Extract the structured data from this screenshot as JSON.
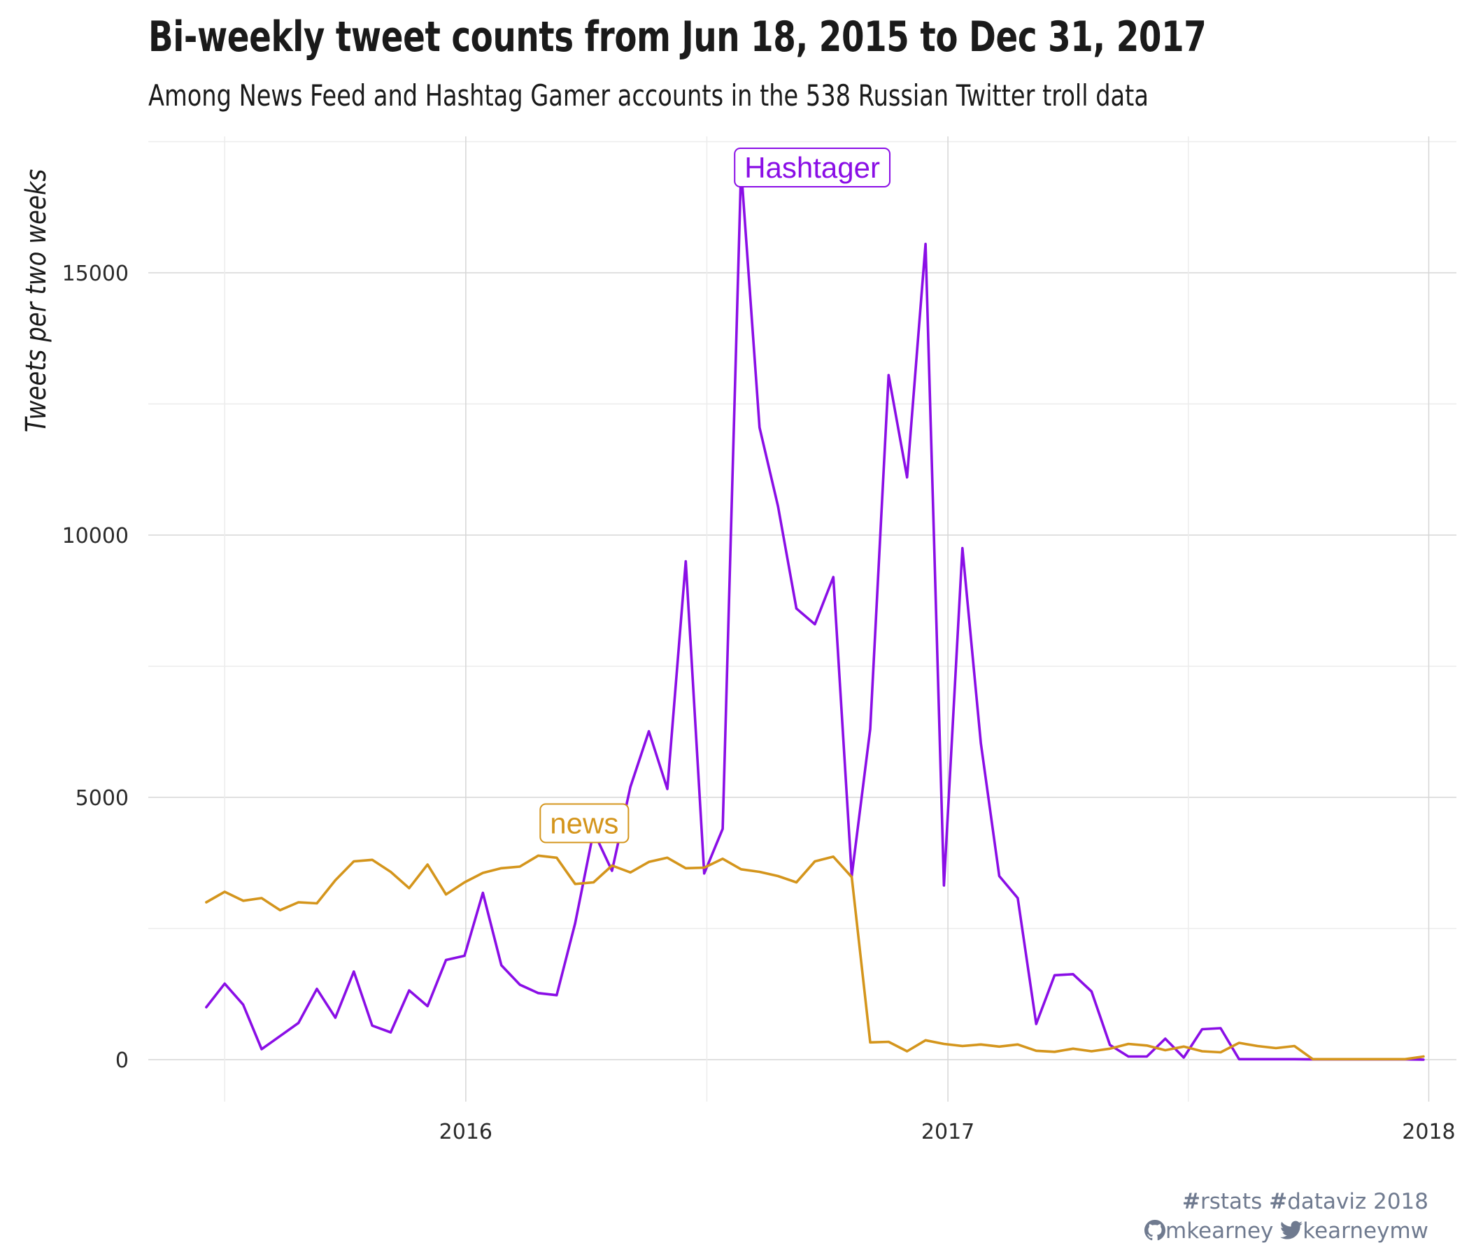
{
  "chart_data": {
    "type": "line",
    "title": "Bi-weekly tweet counts from Jun 18, 2015 to Dec 31, 2017",
    "subtitle": "Among News Feed and Hashtag Gamer accounts in the 538 Russian Twitter troll data",
    "ylabel": "Tweets per two weeks",
    "xlabel": "",
    "x_ticks": [
      "2016",
      "2017",
      "2018"
    ],
    "x_tick_dates": [
      "2016-01-01",
      "2017-01-01",
      "2018-01-01"
    ],
    "y_ticks": [
      0,
      5000,
      10000,
      15000
    ],
    "ylim": [
      -800,
      17600
    ],
    "xlim": [
      "2015-05-05",
      "2018-01-22"
    ],
    "grid": true,
    "legend": "none",
    "series": [
      {
        "name": "Hashtager",
        "color": "#8a0ee6",
        "label_date": "2016-09-20",
        "label_value": 17000,
        "points": [
          [
            "2015-06-18",
            1000
          ],
          [
            "2015-07-02",
            1450
          ],
          [
            "2015-07-16",
            1050
          ],
          [
            "2015-07-30",
            200
          ],
          [
            "2015-08-13",
            450
          ],
          [
            "2015-08-27",
            700
          ],
          [
            "2015-09-10",
            1350
          ],
          [
            "2015-09-24",
            800
          ],
          [
            "2015-10-08",
            1680
          ],
          [
            "2015-10-22",
            650
          ],
          [
            "2015-11-05",
            520
          ],
          [
            "2015-11-19",
            1320
          ],
          [
            "2015-12-03",
            1020
          ],
          [
            "2015-12-17",
            1900
          ],
          [
            "2015-12-31",
            1980
          ],
          [
            "2016-01-14",
            3180
          ],
          [
            "2016-01-28",
            1800
          ],
          [
            "2016-02-11",
            1430
          ],
          [
            "2016-02-25",
            1270
          ],
          [
            "2016-03-10",
            1230
          ],
          [
            "2016-03-24",
            2600
          ],
          [
            "2016-04-07",
            4350
          ],
          [
            "2016-04-21",
            3600
          ],
          [
            "2016-05-05",
            5200
          ],
          [
            "2016-05-19",
            6260
          ],
          [
            "2016-06-02",
            5160
          ],
          [
            "2016-06-16",
            9500
          ],
          [
            "2016-06-30",
            3550
          ],
          [
            "2016-07-14",
            4400
          ],
          [
            "2016-07-28",
            17000
          ],
          [
            "2016-08-11",
            12050
          ],
          [
            "2016-08-25",
            10550
          ],
          [
            "2016-09-08",
            8600
          ],
          [
            "2016-09-22",
            8300
          ],
          [
            "2016-10-06",
            9200
          ],
          [
            "2016-10-20",
            3500
          ],
          [
            "2016-11-03",
            6300
          ],
          [
            "2016-11-17",
            13050
          ],
          [
            "2016-12-01",
            11100
          ],
          [
            "2016-12-15",
            15550
          ],
          [
            "2016-12-29",
            3320
          ],
          [
            "2017-01-12",
            9750
          ],
          [
            "2017-01-26",
            6030
          ],
          [
            "2017-02-09",
            3500
          ],
          [
            "2017-02-23",
            3080
          ],
          [
            "2017-03-09",
            680
          ],
          [
            "2017-03-23",
            1610
          ],
          [
            "2017-04-06",
            1630
          ],
          [
            "2017-04-20",
            1300
          ],
          [
            "2017-05-04",
            280
          ],
          [
            "2017-05-18",
            60
          ],
          [
            "2017-06-01",
            60
          ],
          [
            "2017-06-15",
            400
          ],
          [
            "2017-06-29",
            40
          ],
          [
            "2017-07-13",
            580
          ],
          [
            "2017-07-27",
            600
          ],
          [
            "2017-08-10",
            10
          ],
          [
            "2017-08-24",
            10
          ],
          [
            "2017-09-07",
            10
          ],
          [
            "2017-09-21",
            10
          ],
          [
            "2017-10-05",
            5
          ],
          [
            "2017-10-19",
            5
          ],
          [
            "2017-11-02",
            5
          ],
          [
            "2017-11-16",
            5
          ],
          [
            "2017-11-30",
            5
          ],
          [
            "2017-12-14",
            5
          ],
          [
            "2017-12-28",
            0
          ]
        ]
      },
      {
        "name": "news",
        "color": "#d4951c",
        "label_date": "2016-03-31",
        "label_value": 4500,
        "points": [
          [
            "2015-06-18",
            3000
          ],
          [
            "2015-07-02",
            3200
          ],
          [
            "2015-07-16",
            3030
          ],
          [
            "2015-07-30",
            3080
          ],
          [
            "2015-08-13",
            2850
          ],
          [
            "2015-08-27",
            3000
          ],
          [
            "2015-09-10",
            2980
          ],
          [
            "2015-09-24",
            3420
          ],
          [
            "2015-10-08",
            3780
          ],
          [
            "2015-10-22",
            3810
          ],
          [
            "2015-11-05",
            3580
          ],
          [
            "2015-11-19",
            3270
          ],
          [
            "2015-12-03",
            3720
          ],
          [
            "2015-12-17",
            3150
          ],
          [
            "2015-12-31",
            3380
          ],
          [
            "2016-01-14",
            3560
          ],
          [
            "2016-01-28",
            3650
          ],
          [
            "2016-02-11",
            3680
          ],
          [
            "2016-02-25",
            3890
          ],
          [
            "2016-03-10",
            3850
          ],
          [
            "2016-03-24",
            3350
          ],
          [
            "2016-04-07",
            3380
          ],
          [
            "2016-04-21",
            3700
          ],
          [
            "2016-05-05",
            3570
          ],
          [
            "2016-05-19",
            3770
          ],
          [
            "2016-06-02",
            3850
          ],
          [
            "2016-06-16",
            3650
          ],
          [
            "2016-06-30",
            3660
          ],
          [
            "2016-07-14",
            3830
          ],
          [
            "2016-07-28",
            3630
          ],
          [
            "2016-08-11",
            3580
          ],
          [
            "2016-08-25",
            3500
          ],
          [
            "2016-09-08",
            3380
          ],
          [
            "2016-09-22",
            3780
          ],
          [
            "2016-10-06",
            3870
          ],
          [
            "2016-10-20",
            3480
          ],
          [
            "2016-11-03",
            330
          ],
          [
            "2016-11-17",
            340
          ],
          [
            "2016-12-01",
            160
          ],
          [
            "2016-12-15",
            370
          ],
          [
            "2016-12-29",
            300
          ],
          [
            "2017-01-12",
            260
          ],
          [
            "2017-01-26",
            290
          ],
          [
            "2017-02-09",
            250
          ],
          [
            "2017-02-23",
            290
          ],
          [
            "2017-03-09",
            170
          ],
          [
            "2017-03-23",
            150
          ],
          [
            "2017-04-06",
            210
          ],
          [
            "2017-04-20",
            160
          ],
          [
            "2017-05-04",
            210
          ],
          [
            "2017-05-18",
            300
          ],
          [
            "2017-06-01",
            270
          ],
          [
            "2017-06-15",
            180
          ],
          [
            "2017-06-29",
            250
          ],
          [
            "2017-07-13",
            160
          ],
          [
            "2017-07-27",
            140
          ],
          [
            "2017-08-10",
            320
          ],
          [
            "2017-08-24",
            260
          ],
          [
            "2017-09-07",
            220
          ],
          [
            "2017-09-21",
            260
          ],
          [
            "2017-10-05",
            10
          ],
          [
            "2017-10-19",
            10
          ],
          [
            "2017-11-02",
            10
          ],
          [
            "2017-11-16",
            10
          ],
          [
            "2017-11-30",
            10
          ],
          [
            "2017-12-14",
            10
          ],
          [
            "2017-12-28",
            60
          ]
        ]
      }
    ]
  },
  "caption": {
    "line1_icon": "#",
    "line1_a": "rstats",
    "line1_icon2": "#",
    "line1_b": "dataviz 2018",
    "line2_icon": "github-icon",
    "line2_a": "mkearney",
    "line2_icon2": "twitter-icon",
    "line2_b": "kearneymw"
  }
}
